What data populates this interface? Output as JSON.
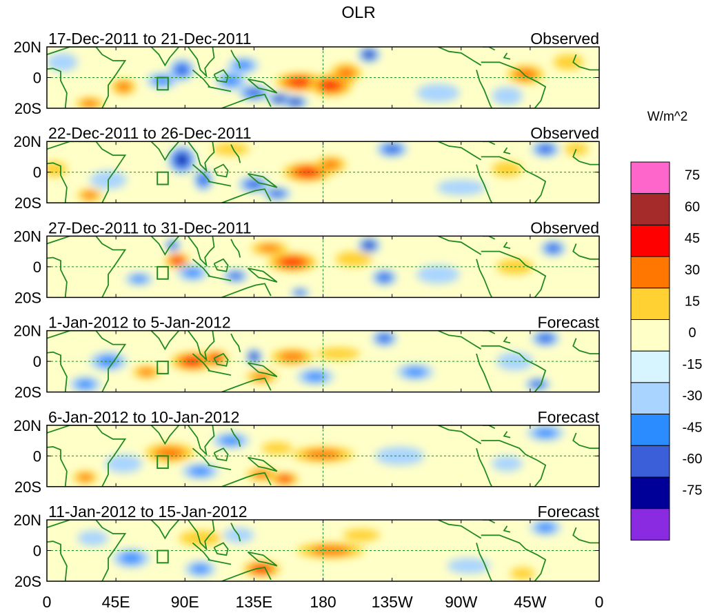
{
  "chart_data": {
    "type": "heatmap",
    "title": "OLR",
    "units_label": "W/m^2",
    "lon_range": [
      0,
      360
    ],
    "lat_range": [
      -20,
      20
    ],
    "x_ticks": [
      {
        "lon": 0,
        "label": "0"
      },
      {
        "lon": 45,
        "label": "45E"
      },
      {
        "lon": 90,
        "label": "90E"
      },
      {
        "lon": 135,
        "label": "135E"
      },
      {
        "lon": 180,
        "label": "180"
      },
      {
        "lon": 225,
        "label": "135W"
      },
      {
        "lon": 270,
        "label": "90W"
      },
      {
        "lon": 315,
        "label": "45W"
      },
      {
        "lon": 360,
        "label": "0"
      }
    ],
    "y_ticks": [
      {
        "lat": 20,
        "label": "20N"
      },
      {
        "lat": 0,
        "label": "0"
      },
      {
        "lat": -20,
        "label": "20S"
      }
    ],
    "colorbar": {
      "levels": [
        "75",
        "60",
        "45",
        "30",
        "15",
        "0",
        "-15",
        "-30",
        "-45",
        "-60",
        "-75"
      ],
      "colors": [
        "#ff66cc",
        "#a52a2a",
        "#ff0000",
        "#ff7700",
        "#ffd133",
        "#ffffc8",
        "#d6f5ff",
        "#a8d4ff",
        "#2b8cff",
        "#3a5fd9",
        "#000099",
        "#8a2be2"
      ]
    },
    "panels": [
      {
        "date_range": "17-Dec-2011 to 21-Dec-2011",
        "kind": "Observed",
        "anomalies": [
          {
            "lon": 88,
            "lat": 5,
            "value": -60,
            "rlon": 8,
            "rlat": 7
          },
          {
            "lon": 75,
            "lat": -2,
            "value": -40,
            "rlon": 10,
            "rlat": 5
          },
          {
            "lon": 120,
            "lat": -2,
            "value": -45,
            "rlon": 10,
            "rlat": 6
          },
          {
            "lon": 128,
            "lat": 8,
            "value": -40,
            "rlon": 10,
            "rlat": 5
          },
          {
            "lon": 135,
            "lat": -10,
            "value": -60,
            "rlon": 10,
            "rlat": 5
          },
          {
            "lon": 152,
            "lat": -14,
            "value": -75,
            "rlon": 8,
            "rlat": 4
          },
          {
            "lon": 162,
            "lat": -16,
            "value": -70,
            "rlon": 8,
            "rlat": 4
          },
          {
            "lon": 210,
            "lat": 15,
            "value": -75,
            "rlon": 7,
            "rlat": 5
          },
          {
            "lon": 165,
            "lat": -3,
            "value": 55,
            "rlon": 16,
            "rlat": 6
          },
          {
            "lon": 185,
            "lat": -5,
            "value": 60,
            "rlon": 14,
            "rlat": 7
          },
          {
            "lon": 195,
            "lat": 3,
            "value": 40,
            "rlon": 10,
            "rlat": 6
          },
          {
            "lon": 50,
            "lat": -6,
            "value": 35,
            "rlon": 8,
            "rlat": 5
          },
          {
            "lon": 28,
            "lat": -17,
            "value": 40,
            "rlon": 9,
            "rlat": 4
          },
          {
            "lon": 312,
            "lat": 2,
            "value": 35,
            "rlon": 12,
            "rlat": 6
          },
          {
            "lon": 340,
            "lat": 10,
            "value": 25,
            "rlon": 10,
            "rlat": 5
          },
          {
            "lon": 255,
            "lat": -10,
            "value": -25,
            "rlon": 14,
            "rlat": 6
          },
          {
            "lon": 10,
            "lat": 10,
            "value": -20,
            "rlon": 10,
            "rlat": 6
          },
          {
            "lon": 300,
            "lat": -12,
            "value": -25,
            "rlon": 10,
            "rlat": 6
          }
        ]
      },
      {
        "date_range": "22-Dec-2011 to 26-Dec-2011",
        "kind": "Observed",
        "anomalies": [
          {
            "lon": 88,
            "lat": 8,
            "value": -75,
            "rlon": 9,
            "rlat": 9
          },
          {
            "lon": 102,
            "lat": -5,
            "value": -60,
            "rlon": 6,
            "rlat": 7
          },
          {
            "lon": 135,
            "lat": -8,
            "value": -60,
            "rlon": 10,
            "rlat": 5
          },
          {
            "lon": 150,
            "lat": -14,
            "value": -55,
            "rlon": 9,
            "rlat": 4
          },
          {
            "lon": 225,
            "lat": 15,
            "value": -60,
            "rlon": 10,
            "rlat": 5
          },
          {
            "lon": 325,
            "lat": 15,
            "value": -60,
            "rlon": 9,
            "rlat": 5
          },
          {
            "lon": 40,
            "lat": -5,
            "value": -30,
            "rlon": 12,
            "rlat": 6
          },
          {
            "lon": 170,
            "lat": 0,
            "value": 55,
            "rlon": 16,
            "rlat": 6
          },
          {
            "lon": 185,
            "lat": 5,
            "value": 35,
            "rlon": 10,
            "rlat": 5
          },
          {
            "lon": 28,
            "lat": -15,
            "value": 35,
            "rlon": 8,
            "rlat": 4
          },
          {
            "lon": 5,
            "lat": 2,
            "value": 25,
            "rlon": 8,
            "rlat": 5
          },
          {
            "lon": 120,
            "lat": 15,
            "value": 25,
            "rlon": 12,
            "rlat": 4
          },
          {
            "lon": 300,
            "lat": 2,
            "value": 25,
            "rlon": 10,
            "rlat": 5
          },
          {
            "lon": 270,
            "lat": -10,
            "value": -20,
            "rlon": 16,
            "rlat": 5
          },
          {
            "lon": 345,
            "lat": 15,
            "value": 25,
            "rlon": 8,
            "rlat": 4
          }
        ]
      },
      {
        "date_range": "27-Dec-2011 to 31-Dec-2011",
        "kind": "Observed",
        "anomalies": [
          {
            "lon": 85,
            "lat": 4,
            "value": 55,
            "rlon": 8,
            "rlat": 5
          },
          {
            "lon": 160,
            "lat": 3,
            "value": 55,
            "rlon": 16,
            "rlat": 6
          },
          {
            "lon": 145,
            "lat": 12,
            "value": 35,
            "rlon": 12,
            "rlat": 4
          },
          {
            "lon": 200,
            "lat": 5,
            "value": 30,
            "rlon": 12,
            "rlat": 5
          },
          {
            "lon": 210,
            "lat": 14,
            "value": -75,
            "rlon": 7,
            "rlat": 5
          },
          {
            "lon": 82,
            "lat": 14,
            "value": -60,
            "rlon": 5,
            "rlat": 4
          },
          {
            "lon": 95,
            "lat": -4,
            "value": -35,
            "rlon": 10,
            "rlat": 5
          },
          {
            "lon": 123,
            "lat": -6,
            "value": -55,
            "rlon": 8,
            "rlat": 4
          },
          {
            "lon": 60,
            "lat": -8,
            "value": -45,
            "rlon": 9,
            "rlat": 4
          },
          {
            "lon": 220,
            "lat": -7,
            "value": -50,
            "rlon": 8,
            "rlat": 5
          },
          {
            "lon": 330,
            "lat": 12,
            "value": -60,
            "rlon": 8,
            "rlat": 5
          },
          {
            "lon": 305,
            "lat": 0,
            "value": 30,
            "rlon": 12,
            "rlat": 5
          },
          {
            "lon": 255,
            "lat": -5,
            "value": -25,
            "rlon": 14,
            "rlat": 6
          },
          {
            "lon": 165,
            "lat": -17,
            "value": -60,
            "rlon": 6,
            "rlat": 3
          }
        ]
      },
      {
        "date_range": "1-Jan-2012 to 5-Jan-2012",
        "kind": "Forecast",
        "anomalies": [
          {
            "lon": 95,
            "lat": 0,
            "value": 55,
            "rlon": 14,
            "rlat": 6
          },
          {
            "lon": 110,
            "lat": 2,
            "value": 50,
            "rlon": 8,
            "rlat": 5
          },
          {
            "lon": 65,
            "lat": -7,
            "value": 35,
            "rlon": 9,
            "rlat": 4
          },
          {
            "lon": 160,
            "lat": 3,
            "value": 35,
            "rlon": 14,
            "rlat": 5
          },
          {
            "lon": 190,
            "lat": 5,
            "value": 30,
            "rlon": 14,
            "rlat": 4
          },
          {
            "lon": 140,
            "lat": -10,
            "value": 40,
            "rlon": 10,
            "rlat": 4
          },
          {
            "lon": 135,
            "lat": 3,
            "value": -65,
            "rlon": 5,
            "rlat": 5
          },
          {
            "lon": 220,
            "lat": 15,
            "value": -60,
            "rlon": 8,
            "rlat": 5
          },
          {
            "lon": 325,
            "lat": 15,
            "value": -55,
            "rlon": 9,
            "rlat": 5
          },
          {
            "lon": 320,
            "lat": -15,
            "value": -60,
            "rlon": 8,
            "rlat": 4
          },
          {
            "lon": 240,
            "lat": -7,
            "value": -40,
            "rlon": 12,
            "rlat": 5
          },
          {
            "lon": 40,
            "lat": 0,
            "value": -35,
            "rlon": 12,
            "rlat": 6
          },
          {
            "lon": 25,
            "lat": -15,
            "value": -45,
            "rlon": 10,
            "rlat": 5
          },
          {
            "lon": 175,
            "lat": -10,
            "value": -35,
            "rlon": 12,
            "rlat": 5
          },
          {
            "lon": 305,
            "lat": 0,
            "value": -25,
            "rlon": 12,
            "rlat": 6
          }
        ]
      },
      {
        "date_range": "6-Jan-2012 to 10-Jan-2012",
        "kind": "Forecast",
        "anomalies": [
          {
            "lon": 80,
            "lat": 2,
            "value": 40,
            "rlon": 16,
            "rlat": 6
          },
          {
            "lon": 180,
            "lat": 1,
            "value": 40,
            "rlon": 20,
            "rlat": 5
          },
          {
            "lon": 140,
            "lat": -12,
            "value": 45,
            "rlon": 10,
            "rlat": 4
          },
          {
            "lon": 155,
            "lat": -15,
            "value": 50,
            "rlon": 9,
            "rlat": 4
          },
          {
            "lon": 25,
            "lat": -14,
            "value": 35,
            "rlon": 8,
            "rlat": 4
          },
          {
            "lon": 120,
            "lat": 10,
            "value": -35,
            "rlon": 12,
            "rlat": 5
          },
          {
            "lon": 100,
            "lat": -10,
            "value": -35,
            "rlon": 12,
            "rlat": 5
          },
          {
            "lon": 50,
            "lat": -5,
            "value": -30,
            "rlon": 12,
            "rlat": 6
          },
          {
            "lon": 325,
            "lat": 15,
            "value": -40,
            "rlon": 12,
            "rlat": 5
          },
          {
            "lon": 230,
            "lat": 0,
            "value": -20,
            "rlon": 16,
            "rlat": 6
          },
          {
            "lon": 300,
            "lat": -5,
            "value": -30,
            "rlon": 10,
            "rlat": 5
          },
          {
            "lon": 150,
            "lat": 5,
            "value": 25,
            "rlon": 10,
            "rlat": 4
          }
        ]
      },
      {
        "date_range": "11-Jan-2012 to 15-Jan-2012",
        "kind": "Forecast",
        "anomalies": [
          {
            "lon": 185,
            "lat": 0,
            "value": 40,
            "rlon": 22,
            "rlat": 5
          },
          {
            "lon": 140,
            "lat": -12,
            "value": 55,
            "rlon": 12,
            "rlat": 5
          },
          {
            "lon": 100,
            "lat": 8,
            "value": 30,
            "rlon": 14,
            "rlat": 5
          },
          {
            "lon": 205,
            "lat": 10,
            "value": 25,
            "rlon": 12,
            "rlat": 4
          },
          {
            "lon": 325,
            "lat": 15,
            "value": -40,
            "rlon": 10,
            "rlat": 5
          },
          {
            "lon": 55,
            "lat": -5,
            "value": -35,
            "rlon": 12,
            "rlat": 6
          },
          {
            "lon": 100,
            "lat": -12,
            "value": -35,
            "rlon": 10,
            "rlat": 5
          },
          {
            "lon": 30,
            "lat": 8,
            "value": -25,
            "rlon": 10,
            "rlat": 5
          },
          {
            "lon": 125,
            "lat": 10,
            "value": -25,
            "rlon": 10,
            "rlat": 5
          },
          {
            "lon": 275,
            "lat": -10,
            "value": -20,
            "rlon": 14,
            "rlat": 5
          },
          {
            "lon": 310,
            "lat": -15,
            "value": 25,
            "rlon": 8,
            "rlat": 4
          }
        ]
      }
    ]
  }
}
